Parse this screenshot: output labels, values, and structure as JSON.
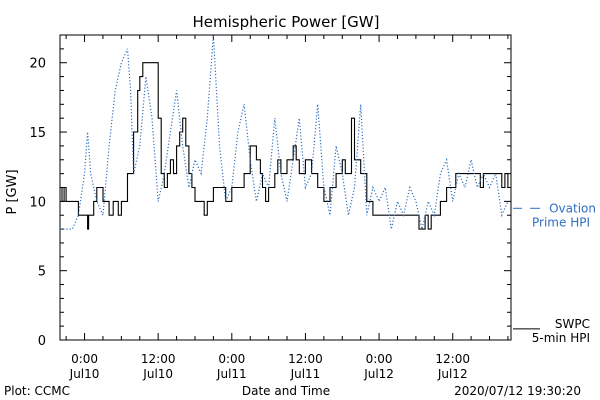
{
  "chart_data": {
    "type": "line",
    "title": "Hemispheric Power [GW]",
    "xlabel": "Date and Time",
    "ylabel": "P [GW]",
    "ylim": [
      0,
      22
    ],
    "yticks": [
      0,
      5,
      10,
      15,
      20
    ],
    "xlim": [
      "2020-07-09 20:00",
      "2020-07-12 21:30"
    ],
    "xticks": [
      {
        "x": "2020-07-10 00:00",
        "time": "0:00",
        "date": "Jul10"
      },
      {
        "x": "2020-07-10 12:00",
        "time": "12:00",
        "date": "Jul10"
      },
      {
        "x": "2020-07-11 00:00",
        "time": "0:00",
        "date": "Jul11"
      },
      {
        "x": "2020-07-11 12:00",
        "time": "12:00",
        "date": "Jul11"
      },
      {
        "x": "2020-07-12 00:00",
        "time": "0:00",
        "date": "Jul12"
      },
      {
        "x": "2020-07-12 12:00",
        "time": "12:00",
        "date": "Jul12"
      }
    ],
    "series": [
      {
        "name": "SWPC 5-min HPI",
        "label_lines": [
          "SWPC",
          "5-min HPI"
        ],
        "color": "#000000",
        "style": "solid-step",
        "points": [
          [
            "2020-07-09 20:00",
            11
          ],
          [
            "2020-07-09 20:20",
            10
          ],
          [
            "2020-07-09 20:40",
            11
          ],
          [
            "2020-07-09 21:00",
            10
          ],
          [
            "2020-07-09 22:00",
            10
          ],
          [
            "2020-07-09 23:00",
            9
          ],
          [
            "2020-07-10 00:00",
            9
          ],
          [
            "2020-07-10 00:30",
            8
          ],
          [
            "2020-07-10 00:40",
            9
          ],
          [
            "2020-07-10 01:00",
            9
          ],
          [
            "2020-07-10 01:30",
            10
          ],
          [
            "2020-07-10 02:00",
            11
          ],
          [
            "2020-07-10 03:00",
            10
          ],
          [
            "2020-07-10 04:00",
            9
          ],
          [
            "2020-07-10 04:40",
            10
          ],
          [
            "2020-07-10 05:30",
            9
          ],
          [
            "2020-07-10 06:00",
            10
          ],
          [
            "2020-07-10 07:00",
            12
          ],
          [
            "2020-07-10 08:00",
            15
          ],
          [
            "2020-07-10 08:40",
            18
          ],
          [
            "2020-07-10 09:00",
            19
          ],
          [
            "2020-07-10 09:30",
            20
          ],
          [
            "2020-07-10 11:30",
            20
          ],
          [
            "2020-07-10 12:00",
            16
          ],
          [
            "2020-07-10 12:30",
            12
          ],
          [
            "2020-07-10 13:00",
            11
          ],
          [
            "2020-07-10 13:30",
            12
          ],
          [
            "2020-07-10 14:00",
            13
          ],
          [
            "2020-07-10 14:30",
            12
          ],
          [
            "2020-07-10 15:00",
            14
          ],
          [
            "2020-07-10 15:30",
            15
          ],
          [
            "2020-07-10 16:00",
            16
          ],
          [
            "2020-07-10 16:30",
            14
          ],
          [
            "2020-07-10 17:00",
            12
          ],
          [
            "2020-07-10 17:30",
            11
          ],
          [
            "2020-07-10 18:00",
            10
          ],
          [
            "2020-07-10 19:00",
            10
          ],
          [
            "2020-07-10 19:30",
            9
          ],
          [
            "2020-07-10 20:00",
            10
          ],
          [
            "2020-07-10 21:00",
            11
          ],
          [
            "2020-07-10 22:00",
            11
          ],
          [
            "2020-07-10 23:00",
            10
          ],
          [
            "2020-07-11 00:00",
            11
          ],
          [
            "2020-07-11 01:00",
            11
          ],
          [
            "2020-07-11 02:00",
            12
          ],
          [
            "2020-07-11 03:00",
            14
          ],
          [
            "2020-07-11 04:00",
            13
          ],
          [
            "2020-07-11 04:40",
            12
          ],
          [
            "2020-07-11 05:00",
            11
          ],
          [
            "2020-07-11 05:30",
            10
          ],
          [
            "2020-07-11 06:00",
            11
          ],
          [
            "2020-07-11 07:00",
            12
          ],
          [
            "2020-07-11 07:30",
            13
          ],
          [
            "2020-07-11 08:00",
            12
          ],
          [
            "2020-07-11 09:00",
            13
          ],
          [
            "2020-07-11 10:00",
            14
          ],
          [
            "2020-07-11 10:30",
            13
          ],
          [
            "2020-07-11 11:00",
            12
          ],
          [
            "2020-07-11 12:00",
            13
          ],
          [
            "2020-07-11 13:00",
            12
          ],
          [
            "2020-07-11 14:00",
            11
          ],
          [
            "2020-07-11 15:00",
            10
          ],
          [
            "2020-07-11 16:00",
            11
          ],
          [
            "2020-07-11 17:00",
            12
          ],
          [
            "2020-07-11 18:00",
            13
          ],
          [
            "2020-07-11 18:30",
            12
          ],
          [
            "2020-07-11 19:30",
            16
          ],
          [
            "2020-07-11 20:00",
            13
          ],
          [
            "2020-07-11 21:00",
            12
          ],
          [
            "2020-07-11 22:00",
            10
          ],
          [
            "2020-07-11 23:00",
            9
          ],
          [
            "2020-07-12 00:00",
            9
          ],
          [
            "2020-07-12 06:00",
            9
          ],
          [
            "2020-07-12 06:30",
            8
          ],
          [
            "2020-07-12 07:30",
            9
          ],
          [
            "2020-07-12 08:00",
            8
          ],
          [
            "2020-07-12 08:30",
            9
          ],
          [
            "2020-07-12 09:00",
            9
          ],
          [
            "2020-07-12 10:00",
            10
          ],
          [
            "2020-07-12 11:00",
            11
          ],
          [
            "2020-07-12 12:00",
            11
          ],
          [
            "2020-07-12 12:30",
            12
          ],
          [
            "2020-07-12 15:30",
            12
          ],
          [
            "2020-07-12 16:30",
            11
          ],
          [
            "2020-07-12 17:00",
            12
          ],
          [
            "2020-07-12 19:30",
            12
          ],
          [
            "2020-07-12 20:00",
            11
          ],
          [
            "2020-07-12 20:30",
            12
          ],
          [
            "2020-07-12 21:00",
            11
          ]
        ]
      },
      {
        "name": "Ovation Prime HPI",
        "label_lines": [
          "Ovation",
          "Prime HPI"
        ],
        "color": "#2f6fbf",
        "style": "dotted",
        "points": [
          [
            "2020-07-09 20:00",
            8
          ],
          [
            "2020-07-09 21:00",
            8
          ],
          [
            "2020-07-09 22:00",
            8
          ],
          [
            "2020-07-09 23:00",
            9
          ],
          [
            "2020-07-10 00:00",
            12
          ],
          [
            "2020-07-10 00:30",
            15
          ],
          [
            "2020-07-10 01:00",
            12
          ],
          [
            "2020-07-10 02:00",
            10
          ],
          [
            "2020-07-10 03:00",
            9
          ],
          [
            "2020-07-10 04:00",
            14
          ],
          [
            "2020-07-10 05:00",
            18
          ],
          [
            "2020-07-10 06:00",
            20
          ],
          [
            "2020-07-10 07:00",
            21
          ],
          [
            "2020-07-10 07:30",
            18
          ],
          [
            "2020-07-10 08:00",
            12
          ],
          [
            "2020-07-10 09:00",
            14
          ],
          [
            "2020-07-10 10:00",
            19
          ],
          [
            "2020-07-10 11:00",
            16
          ],
          [
            "2020-07-10 12:00",
            10
          ],
          [
            "2020-07-10 13:00",
            12
          ],
          [
            "2020-07-10 14:00",
            15
          ],
          [
            "2020-07-10 15:00",
            18
          ],
          [
            "2020-07-10 16:00",
            14
          ],
          [
            "2020-07-10 17:00",
            11
          ],
          [
            "2020-07-10 18:00",
            13
          ],
          [
            "2020-07-10 19:00",
            12
          ],
          [
            "2020-07-10 20:00",
            16
          ],
          [
            "2020-07-10 21:00",
            22
          ],
          [
            "2020-07-10 22:00",
            14
          ],
          [
            "2020-07-10 23:00",
            10
          ],
          [
            "2020-07-11 00:00",
            11
          ],
          [
            "2020-07-11 01:00",
            15
          ],
          [
            "2020-07-11 02:00",
            17
          ],
          [
            "2020-07-11 03:00",
            13
          ],
          [
            "2020-07-11 04:00",
            10
          ],
          [
            "2020-07-11 05:00",
            12
          ],
          [
            "2020-07-11 06:00",
            11
          ],
          [
            "2020-07-11 07:00",
            16
          ],
          [
            "2020-07-11 08:00",
            12
          ],
          [
            "2020-07-11 09:00",
            10
          ],
          [
            "2020-07-11 10:00",
            13
          ],
          [
            "2020-07-11 11:00",
            16
          ],
          [
            "2020-07-11 12:00",
            11
          ],
          [
            "2020-07-11 13:00",
            12
          ],
          [
            "2020-07-11 14:00",
            17
          ],
          [
            "2020-07-11 15:00",
            11
          ],
          [
            "2020-07-11 16:00",
            9
          ],
          [
            "2020-07-11 17:00",
            14
          ],
          [
            "2020-07-11 18:00",
            12
          ],
          [
            "2020-07-11 19:00",
            9
          ],
          [
            "2020-07-11 20:00",
            11
          ],
          [
            "2020-07-11 21:00",
            17
          ],
          [
            "2020-07-11 22:00",
            9
          ],
          [
            "2020-07-11 23:00",
            11
          ],
          [
            "2020-07-12 00:00",
            10
          ],
          [
            "2020-07-12 01:00",
            11
          ],
          [
            "2020-07-12 02:00",
            8
          ],
          [
            "2020-07-12 03:00",
            10
          ],
          [
            "2020-07-12 04:00",
            9
          ],
          [
            "2020-07-12 05:00",
            11
          ],
          [
            "2020-07-12 06:00",
            10
          ],
          [
            "2020-07-12 07:00",
            8
          ],
          [
            "2020-07-12 08:00",
            10
          ],
          [
            "2020-07-12 09:00",
            9
          ],
          [
            "2020-07-12 10:00",
            12
          ],
          [
            "2020-07-12 11:00",
            13
          ],
          [
            "2020-07-12 12:00",
            10
          ],
          [
            "2020-07-12 13:00",
            12
          ],
          [
            "2020-07-12 14:00",
            11
          ],
          [
            "2020-07-12 15:00",
            13
          ],
          [
            "2020-07-12 16:00",
            11
          ],
          [
            "2020-07-12 17:00",
            12
          ],
          [
            "2020-07-12 18:00",
            11
          ],
          [
            "2020-07-12 19:00",
            12
          ],
          [
            "2020-07-12 20:00",
            9
          ],
          [
            "2020-07-12 21:00",
            10
          ]
        ]
      }
    ],
    "grid": false
  },
  "footer": {
    "source": "Plot: CCMC",
    "timestamp": "2020/07/12 19:30:20"
  }
}
